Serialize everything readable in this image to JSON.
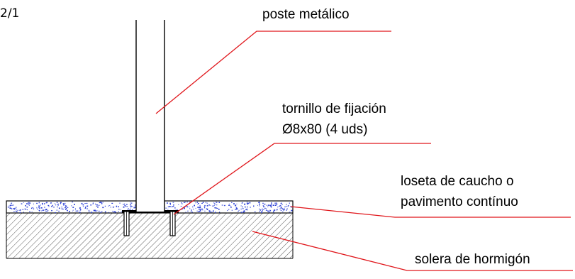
{
  "scale": "2/1",
  "labels": {
    "post": "poste metálico",
    "screw_line1": "tornillo de fijación",
    "screw_line2": "Ø8x80 (4 uds)",
    "tile_line1": "loseta de caucho o",
    "tile_line2": "pavimento contínuo",
    "slab": "solera de hormigón"
  },
  "colors": {
    "leader": "#e0161b",
    "outline": "#000000",
    "hatch": "#555555",
    "speckle": "#2a3fd6"
  }
}
